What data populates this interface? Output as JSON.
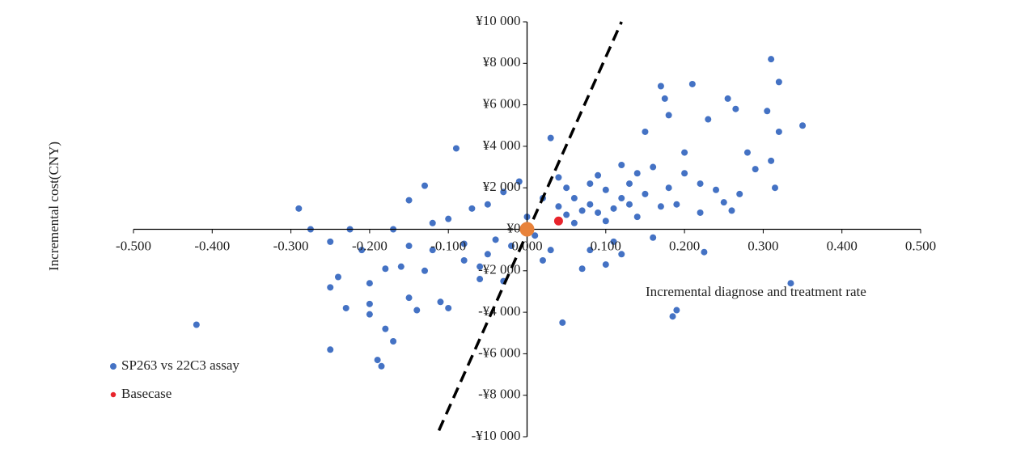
{
  "chart_data": {
    "type": "scatter",
    "x_label": "Incremental diagnose and treatment rate",
    "y_label": "Incremental cost(CNY)",
    "xlim": [
      -0.5,
      0.5
    ],
    "ylim": [
      -10000,
      10000
    ],
    "xticks": [
      {
        "value": -0.5,
        "label": "-0.500"
      },
      {
        "value": -0.4,
        "label": "-0.400"
      },
      {
        "value": -0.3,
        "label": "-0.300"
      },
      {
        "value": -0.2,
        "label": "-0.200"
      },
      {
        "value": -0.1,
        "label": "-0.100"
      },
      {
        "value": 0,
        "label": "0.000"
      },
      {
        "value": 0.1,
        "label": "0.100"
      },
      {
        "value": 0.2,
        "label": "0.200"
      },
      {
        "value": 0.3,
        "label": "0.300"
      },
      {
        "value": 0.4,
        "label": "0.400"
      },
      {
        "value": 0.5,
        "label": "0.500"
      }
    ],
    "yticks": [
      {
        "value": -10000,
        "label": "-¥10 000"
      },
      {
        "value": -8000,
        "label": "-¥8 000"
      },
      {
        "value": -6000,
        "label": "-¥6 000"
      },
      {
        "value": -4000,
        "label": "-¥4 000"
      },
      {
        "value": -2000,
        "label": "-¥2 000"
      },
      {
        "value": 0,
        "label": "¥0"
      },
      {
        "value": 2000,
        "label": "¥2 000"
      },
      {
        "value": 4000,
        "label": "¥4 000"
      },
      {
        "value": 6000,
        "label": "¥6 000"
      },
      {
        "value": 8000,
        "label": "¥8 000"
      },
      {
        "value": 10000,
        "label": "¥10 000"
      }
    ],
    "series": [
      {
        "name": "SP263 vs 22C3 assay",
        "color": "#4472c4",
        "x": [
          -0.42,
          -0.29,
          -0.275,
          -0.25,
          -0.25,
          -0.25,
          -0.24,
          -0.23,
          -0.225,
          -0.21,
          -0.2,
          -0.2,
          -0.2,
          -0.19,
          -0.185,
          -0.18,
          -0.17,
          -0.17,
          -0.16,
          -0.15,
          -0.15,
          -0.14,
          -0.13,
          -0.13,
          -0.12,
          -0.11,
          -0.1,
          -0.09,
          -0.1,
          -0.08,
          -0.07,
          -0.06,
          -0.05,
          -0.04,
          -0.03,
          -0.02,
          -0.01,
          0.01,
          0.02,
          0.03,
          0.03,
          0.04,
          0.045,
          0.05,
          0.06,
          0.07,
          0.08,
          0.09,
          0.1,
          0.11,
          0.12,
          0.13,
          0.14,
          0.15,
          0.16,
          0.17,
          0.175,
          0.18,
          0.185,
          0.19,
          0.2,
          0.21,
          0.22,
          0.23,
          0.24,
          0.255,
          0.26,
          0.265,
          0.27,
          0.28,
          0.29,
          0.305,
          0.31,
          0.31,
          0.315,
          0.32,
          0.32,
          0.335,
          0.35,
          0.225,
          0.18,
          0.19,
          0.16,
          0.14,
          0.12,
          0.1,
          0.08,
          0.06,
          0.05,
          0.07,
          0.09,
          0.11,
          0.13,
          0.15,
          0.17,
          0.2,
          0.22,
          0.25,
          -0.05,
          -0.08,
          -0.12,
          -0.15,
          -0.18,
          -0.06,
          -0.03,
          0.0,
          0.02,
          0.04,
          0.08,
          0.12,
          0.1
        ],
        "values": [
          -4600,
          1000,
          0,
          -600,
          -2800,
          -5800,
          -2300,
          -3800,
          0,
          -1000,
          -2600,
          -3600,
          -4100,
          -6300,
          -6600,
          -4800,
          -5400,
          0,
          -1800,
          1400,
          -3300,
          -3900,
          -2000,
          2100,
          -1000,
          -3500,
          -3800,
          3900,
          500,
          -1500,
          1000,
          -2400,
          -1200,
          -500,
          1800,
          -800,
          2300,
          -300,
          1500,
          4400,
          -1000,
          2500,
          -4500,
          700,
          1500,
          -1900,
          2200,
          800,
          1900,
          -600,
          3100,
          1200,
          2700,
          4700,
          -400,
          6900,
          6300,
          5500,
          -4200,
          -3900,
          3700,
          7000,
          2200,
          5300,
          1900,
          6300,
          900,
          5800,
          1700,
          3700,
          2900,
          5700,
          8200,
          3300,
          2000,
          7100,
          4700,
          -2600,
          5000,
          -1100,
          2000,
          1200,
          3000,
          600,
          1500,
          400,
          1200,
          300,
          2000,
          900,
          2600,
          1000,
          2200,
          1700,
          1100,
          2700,
          800,
          1300,
          1200,
          -700,
          300,
          -800,
          -1900,
          -1800,
          -2500,
          600,
          -1500,
          1100,
          -1000,
          -1200,
          -1700
        ]
      },
      {
        "name": "Basecase",
        "color": "#e8242c",
        "x": [
          0.04
        ],
        "values": [
          400
        ]
      }
    ],
    "reference_point": {
      "x": 0,
      "y": 0,
      "color": "#e8823a"
    },
    "threshold_line": {
      "x": [
        -0.112,
        0.12
      ],
      "y": [
        -9700,
        10000
      ]
    }
  }
}
